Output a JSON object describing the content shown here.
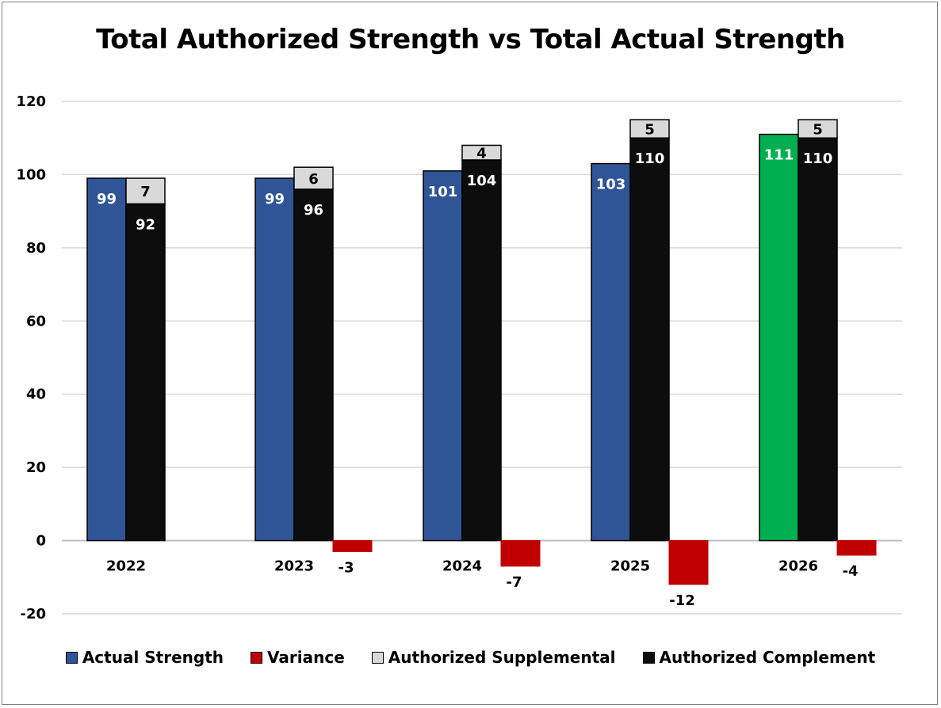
{
  "chart_data": {
    "type": "bar",
    "title": "Total Authorized Strength vs Total Actual Strength",
    "categories": [
      "2022",
      "2023",
      "2024",
      "2025",
      "2026"
    ],
    "ylim": [
      -20,
      120
    ],
    "yticks": [
      -20,
      0,
      20,
      40,
      60,
      80,
      100,
      120
    ],
    "grid": true,
    "legend_position": "bottom",
    "series": [
      {
        "name": "Actual Strength",
        "key": "actual",
        "values": [
          99,
          99,
          101,
          103,
          111
        ],
        "color": "#2f5597",
        "highlight_color": "#00b050",
        "highlight_index": 4
      },
      {
        "name": "Variance",
        "key": "variance",
        "values": [
          null,
          -3,
          -7,
          -12,
          -4
        ],
        "color": "#c00000"
      },
      {
        "name": "Authorized Supplemental",
        "key": "supplemental",
        "values": [
          7,
          6,
          4,
          5,
          5
        ],
        "color": "#d9d9d9"
      },
      {
        "name": "Authorized Complement",
        "key": "complement",
        "values": [
          92,
          96,
          104,
          110,
          110
        ],
        "color": "#0d0d0d"
      }
    ]
  }
}
